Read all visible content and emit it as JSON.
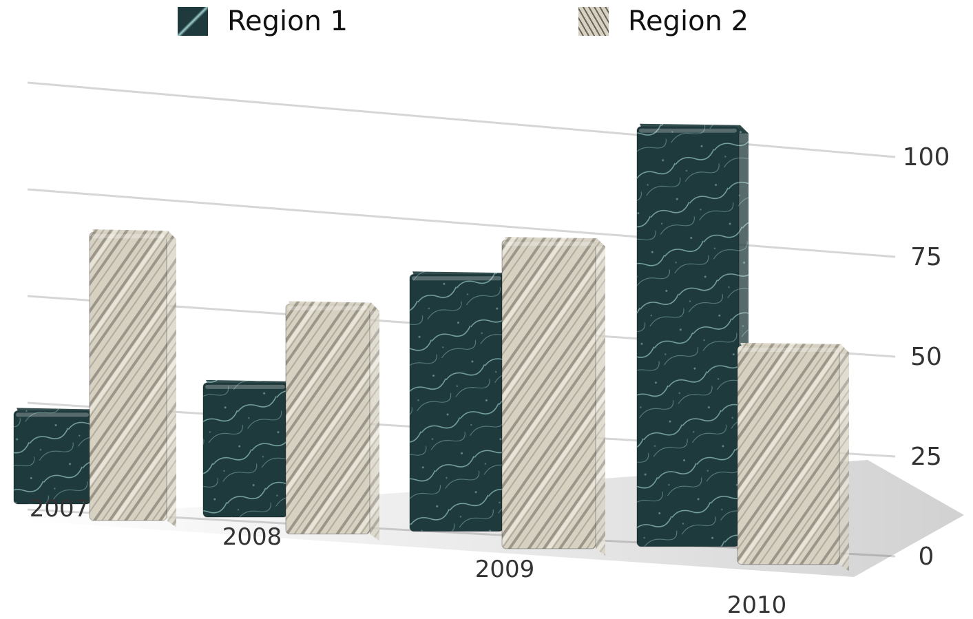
{
  "chart_data": {
    "type": "bar",
    "categories": [
      "2007",
      "2008",
      "2009",
      "2010"
    ],
    "series": [
      {
        "name": "Region 1",
        "values": [
          17,
          27,
          57,
          98
        ]
      },
      {
        "name": "Region 2",
        "values": [
          63,
          50,
          70,
          49
        ]
      }
    ],
    "ylim": [
      0,
      100
    ],
    "yticks": [
      0,
      25,
      50,
      75,
      100
    ],
    "grid": true,
    "legend": "top",
    "colors": {
      "region1": "#1f3a3c",
      "region1_vein": "#9fd0cf",
      "region2": "#d7d1c2",
      "region2_stripe": "#6a655a",
      "grid": "#d6d6d6"
    }
  }
}
